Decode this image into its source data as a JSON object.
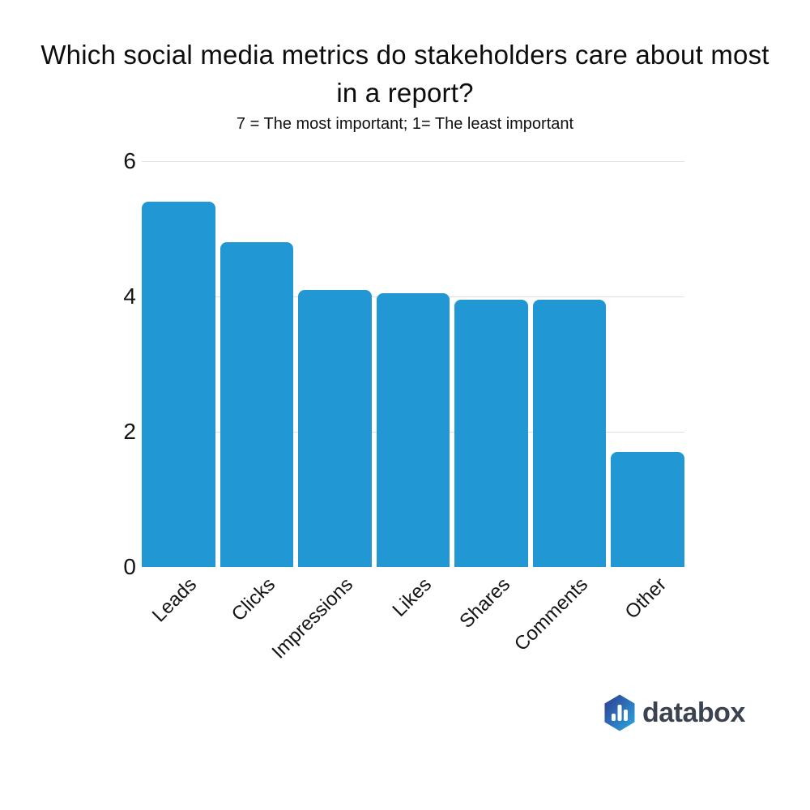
{
  "chart_data": {
    "type": "bar",
    "title": "Which social media metrics do stakeholders care about most in a report?",
    "subtitle": "7 = The most important; 1= The least important",
    "categories": [
      "Leads",
      "Clicks",
      "Impressions",
      "Likes",
      "Shares",
      "Comments",
      "Other"
    ],
    "values": [
      5.4,
      4.8,
      4.1,
      4.05,
      3.95,
      3.95,
      1.7
    ],
    "xlabel": "",
    "ylabel": "",
    "y_ticks": [
      0,
      2,
      4,
      6
    ],
    "ylim": [
      0,
      6
    ],
    "grid": true,
    "legend_position": "none",
    "bar_color": "#2198d3",
    "gridline_color": "#e0e0e0",
    "axis_text_color": "#141414"
  },
  "branding": {
    "logo_text": "databox",
    "logo_icon": "databox-hexagon-bar-chart-icon",
    "logo_text_color": "#3c4350",
    "logo_gradient_start": "#2f3a90",
    "logo_gradient_end": "#2ca9e2"
  }
}
